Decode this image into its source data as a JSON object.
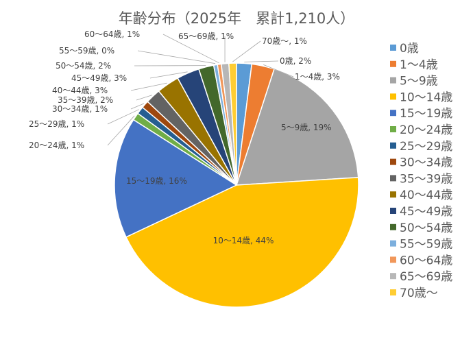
{
  "chart_data": {
    "type": "pie",
    "title": "年齢分布（2025年　累計1,210人）",
    "series": [
      {
        "name": "0歳",
        "value": 2,
        "label": "0歳, 2%",
        "color": "#5B9BD5"
      },
      {
        "name": "1～4歳",
        "value": 3,
        "label": "1～4歳, 3%",
        "color": "#ED7D31"
      },
      {
        "name": "5～9歳",
        "value": 19,
        "label": "5～9歳, 19%",
        "color": "#A5A5A5"
      },
      {
        "name": "10～14歳",
        "value": 44,
        "label": "10～14歳, 44%",
        "color": "#FFC000"
      },
      {
        "name": "15～19歳",
        "value": 16,
        "label": "15～19歳, 16%",
        "color": "#4472C4"
      },
      {
        "name": "20～24歳",
        "value": 1,
        "label": "20～24歳, 1%",
        "color": "#70AD47"
      },
      {
        "name": "25～29歳",
        "value": 1,
        "label": "25～29歳, 1%",
        "color": "#255E91"
      },
      {
        "name": "30～34歳",
        "value": 1,
        "label": "30～34歳, 1%",
        "color": "#9E480E"
      },
      {
        "name": "35～39歳",
        "value": 2,
        "label": "35～39歳, 2%",
        "color": "#636363"
      },
      {
        "name": "40～44歳",
        "value": 3,
        "label": "40～44歳, 3%",
        "color": "#997300"
      },
      {
        "name": "45～49歳",
        "value": 3,
        "label": "45～49歳, 3%",
        "color": "#264478"
      },
      {
        "name": "50～54歳",
        "value": 2,
        "label": "50～54歳, 2%",
        "color": "#43682B"
      },
      {
        "name": "55～59歳",
        "value": 0.5,
        "label": "55～59歳, 0%",
        "color": "#7CAFDD"
      },
      {
        "name": "60～64歳",
        "value": 0.5,
        "label": "60～64歳, 1%",
        "color": "#F1975A"
      },
      {
        "name": "65～69歳",
        "value": 1,
        "label": "65～69歳, 1%",
        "color": "#B7B7B7"
      },
      {
        "name": "70歳～",
        "value": 1,
        "label": "70歳～, 1%",
        "color": "#FFCD33"
      }
    ],
    "legend_position": "right"
  }
}
